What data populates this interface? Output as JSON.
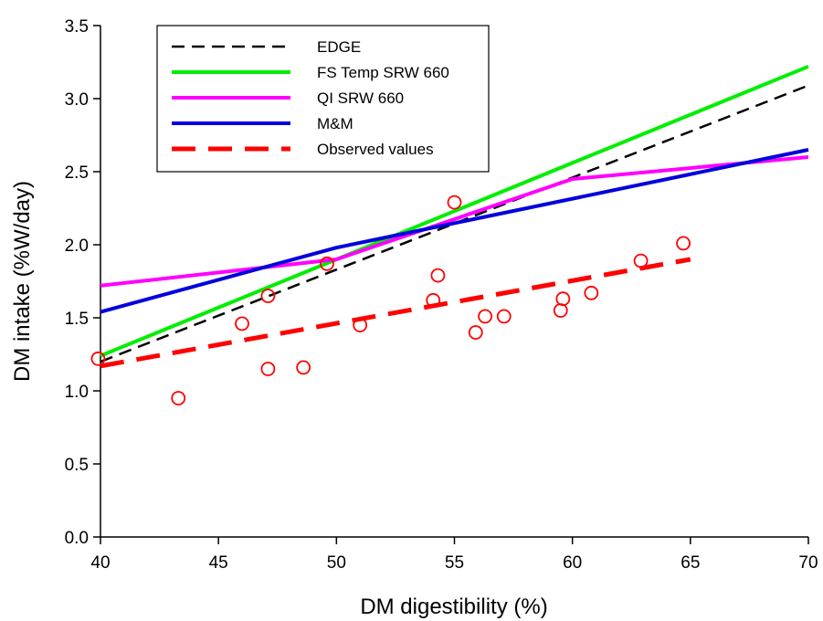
{
  "chart_data": {
    "type": "line",
    "title": "",
    "xlabel": "DM digestibility (%)",
    "ylabel": "DM intake (%W/day)",
    "xlim": [
      40,
      70
    ],
    "ylim": [
      0,
      3.5
    ],
    "x_ticks": [
      40,
      45,
      50,
      55,
      60,
      65,
      70
    ],
    "x_tick_labels": [
      "40",
      "45",
      "50",
      "55",
      "60",
      "65",
      "70"
    ],
    "y_ticks": [
      0,
      0.5,
      1.0,
      1.5,
      2.0,
      2.5,
      3.0,
      3.5
    ],
    "y_tick_labels": [
      "0.0",
      "0.5",
      "1.0",
      "1.5",
      "2.0",
      "2.5",
      "3.0",
      "3.5"
    ],
    "grid": false,
    "legend_position": "top-left",
    "series": [
      {
        "name": "EDGE",
        "color": "#000000",
        "style": "dashed",
        "width": 2.5,
        "x": [
          40,
          70
        ],
        "y": [
          1.2,
          3.09
        ]
      },
      {
        "name": "FS Temp SRW 660",
        "color": "#00ee00",
        "style": "solid",
        "width": 4,
        "x": [
          40,
          70
        ],
        "y": [
          1.24,
          3.22
        ]
      },
      {
        "name": "QI SRW 660",
        "color": "#ff00ff",
        "style": "solid",
        "width": 4,
        "x": [
          40,
          50,
          60,
          70
        ],
        "y": [
          1.72,
          1.9,
          2.45,
          2.6
        ]
      },
      {
        "name": "M&M",
        "color": "#0000dd",
        "style": "solid",
        "width": 4,
        "x": [
          40,
          50,
          70
        ],
        "y": [
          1.54,
          1.98,
          2.65
        ]
      },
      {
        "name": "Observed values",
        "color": "#ff0000",
        "style": "dashed",
        "width": 5,
        "x": [
          40,
          65
        ],
        "y": [
          1.17,
          1.9
        ]
      }
    ],
    "observed_points": {
      "color": "#ff0000",
      "marker": "open-circle",
      "x": [
        39.9,
        43.3,
        46.0,
        47.1,
        47.1,
        48.6,
        49.6,
        51.0,
        54.1,
        54.3,
        55.0,
        55.9,
        56.3,
        57.1,
        59.5,
        59.6,
        60.8,
        62.9,
        64.7
      ],
      "y": [
        1.22,
        0.95,
        1.46,
        1.65,
        1.15,
        1.16,
        1.87,
        1.45,
        1.62,
        1.79,
        2.29,
        1.4,
        1.51,
        1.51,
        1.55,
        1.63,
        1.67,
        1.89,
        2.01
      ]
    }
  }
}
